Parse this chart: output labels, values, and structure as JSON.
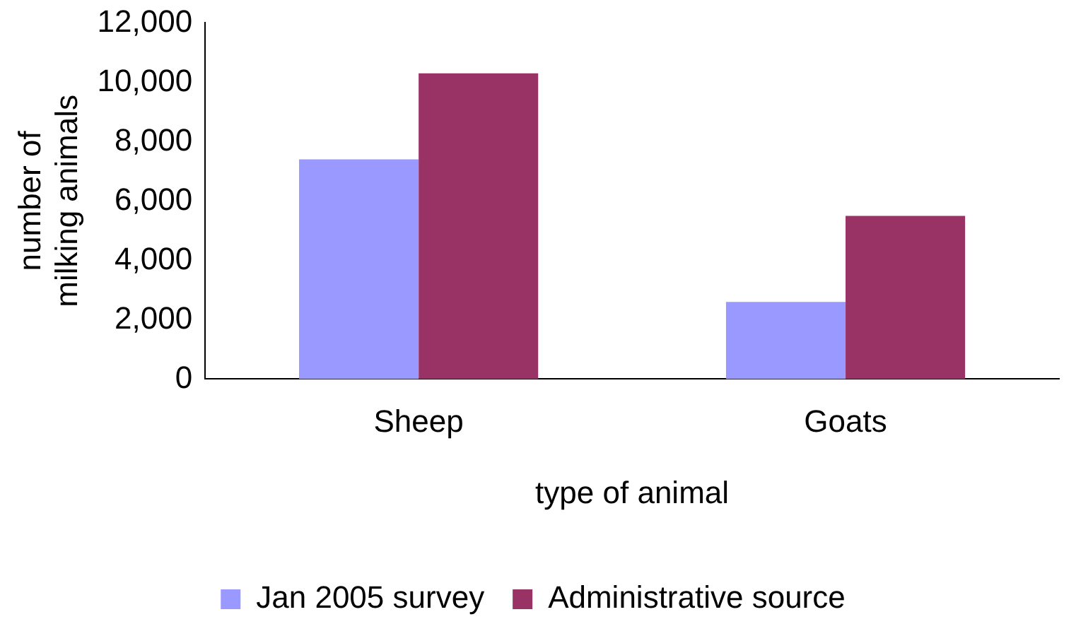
{
  "chart_data": {
    "type": "bar",
    "xlabel": "type of animal",
    "ylabel": "number of milking animals",
    "categories": [
      "Sheep",
      "Goats"
    ],
    "series": [
      {
        "name": "Jan 2005 survey",
        "color": "#9999ff",
        "values": [
          7400,
          2600
        ]
      },
      {
        "name": "Administrative source",
        "color": "#993366",
        "values": [
          10300,
          5500
        ]
      }
    ],
    "ylim": [
      0,
      12000
    ],
    "yticks": [
      0,
      {
        "value": 2000,
        "label": "2,000"
      },
      {
        "value": 4000,
        "label": "4,000"
      },
      {
        "value": 6000,
        "label": "6,000"
      },
      {
        "value": 8000,
        "label": "8,000"
      },
      {
        "value": 10000,
        "label": "10,000"
      },
      {
        "value": 12000,
        "label": "12,000"
      }
    ],
    "grid": false,
    "legend": "bottom"
  }
}
